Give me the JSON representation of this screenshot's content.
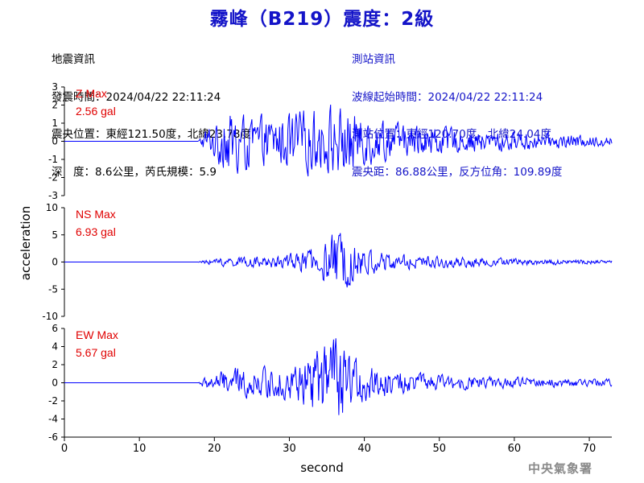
{
  "title": "霧峰（B219）震度：2級",
  "event_info": {
    "heading": "地震資訊",
    "origin_time": "發震時間：2024/04/22 22:11:24",
    "epicenter": "震央位置：東經121.50度，北緯23.78度",
    "depth_magnitude": "深　度：8.6公里，芮氏規模：5.9"
  },
  "station_info": {
    "heading": "測站資訊",
    "wave_start": "波線起始時間：2024/04/22 22:11:24",
    "station_location": "測站位置：東經120.70度，北緯24.04度",
    "distance_azimuth": "震央距：86.88公里，反方位角：109.89度"
  },
  "credit": "中央氣象署",
  "colors": {
    "title": "#1414c8",
    "trace": "#0000ff",
    "max_label": "#e00000",
    "station_info": "#1414c8",
    "credit": "#8a8a8a"
  },
  "chart_data": {
    "type": "line",
    "xlabel": "second",
    "ylabel": "acceleration",
    "xlim": [
      0,
      73
    ],
    "xticks": [
      0,
      10,
      20,
      30,
      40,
      50,
      60,
      70
    ],
    "grid": false,
    "arrival_time_s": 17.8,
    "sample_step_s": 0.1,
    "panels": [
      {
        "component": "Z",
        "max_label": "Z Max",
        "max_value": "2.56 gal",
        "ylim": [
          -3,
          3
        ],
        "yticks": [
          -3,
          -2,
          -1,
          0,
          1,
          2,
          3
        ],
        "envelope": {
          "x": [
            0,
            17.8,
            18.5,
            20,
            22,
            24,
            26,
            28,
            30,
            32,
            34,
            36,
            38,
            40,
            43,
            46,
            50,
            55,
            60,
            65,
            70,
            73
          ],
          "y": [
            0,
            0,
            0.6,
            1.2,
            2.2,
            1.8,
            1.6,
            1.7,
            1.9,
            2.1,
            2.0,
            2.3,
            2.2,
            1.6,
            1.2,
            1.0,
            0.9,
            0.7,
            0.6,
            0.5,
            0.4,
            0.35
          ]
        }
      },
      {
        "component": "NS",
        "max_label": "NS Max",
        "max_value": "6.93 gal",
        "ylim": [
          -10,
          10
        ],
        "yticks": [
          -10,
          -5,
          0,
          5,
          10
        ],
        "envelope": {
          "x": [
            0,
            17.8,
            18.5,
            20,
            22,
            24,
            26,
            28,
            30,
            32,
            34,
            35,
            36.5,
            38,
            40,
            43,
            46,
            50,
            55,
            60,
            65,
            70,
            73
          ],
          "y": [
            0,
            0,
            0.4,
            0.7,
            1.2,
            1.0,
            1.2,
            1.4,
            1.8,
            2.3,
            3.5,
            5.0,
            6.9,
            4.8,
            3.0,
            2.0,
            1.5,
            1.2,
            1.0,
            0.8,
            0.6,
            0.5,
            0.4
          ]
        }
      },
      {
        "component": "EW",
        "max_label": "EW Max",
        "max_value": "5.67 gal",
        "ylim": [
          -6,
          6
        ],
        "yticks": [
          -6,
          -4,
          -2,
          0,
          2,
          4,
          6
        ],
        "envelope": {
          "x": [
            0,
            17.8,
            18.5,
            20,
            22,
            24,
            26,
            28,
            30,
            32,
            33,
            35,
            36.5,
            38,
            40,
            43,
            46,
            50,
            55,
            60,
            65,
            70,
            73
          ],
          "y": [
            0,
            0,
            0.6,
            1.2,
            1.8,
            2.0,
            1.9,
            2.0,
            2.3,
            3.0,
            4.0,
            5.0,
            5.7,
            3.5,
            2.5,
            1.8,
            1.3,
            1.0,
            0.8,
            0.7,
            0.6,
            0.5,
            0.5
          ]
        }
      }
    ]
  }
}
